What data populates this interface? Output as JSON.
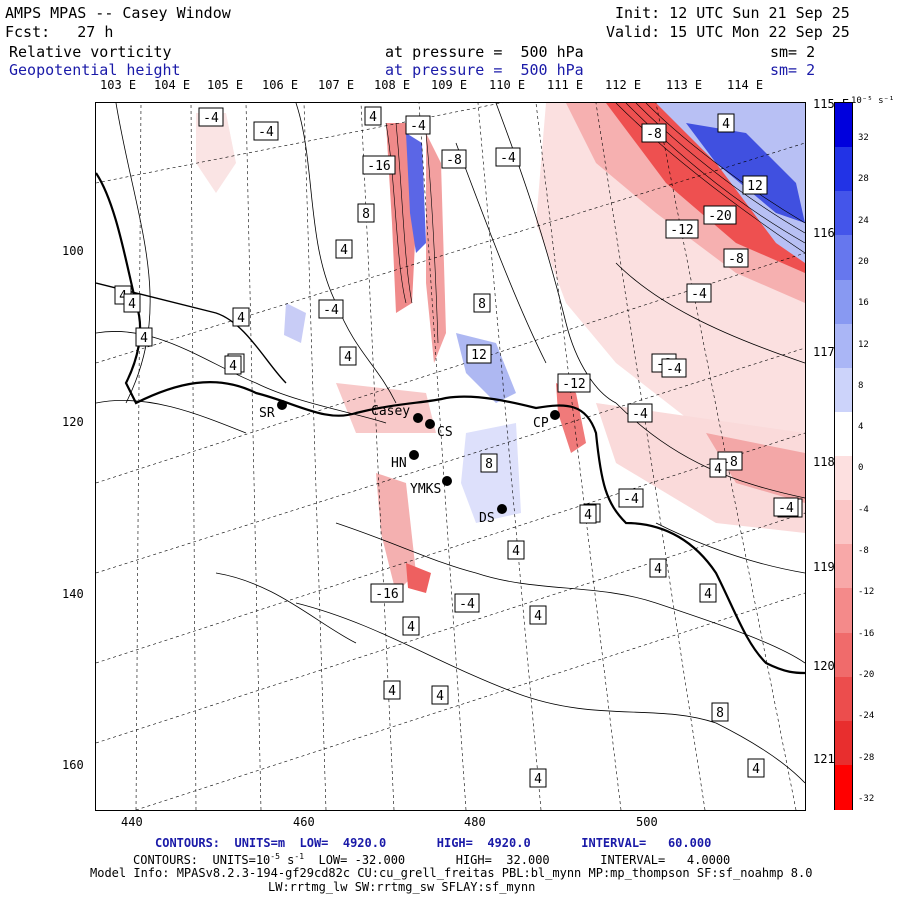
{
  "header": {
    "title": "AMPS MPAS -- Casey Window",
    "forecast": "Fcst:   27 h",
    "init": "Init: 12 UTC Sun 21 Sep 25",
    "valid": "Valid: 15 UTC Mon 22 Sep 25",
    "field1": {
      "name": "Relative vorticity",
      "level": "at pressure =  500 hPa",
      "smooth": "sm= 2"
    },
    "field2": {
      "name": "Geopotential height",
      "level": "at pressure =  500 hPa",
      "smooth": "sm= 2"
    }
  },
  "axes": {
    "top_lon": [
      "103 E",
      "104 E",
      "105 E",
      "106 E",
      "107 E",
      "108 E",
      "109 E",
      "110 E",
      "111 E",
      "112 E",
      "113 E",
      "114 E"
    ],
    "right_lat": [
      "115 E",
      "116 E",
      "117 E",
      "118 E",
      "119 E",
      "120 E",
      "121 E"
    ],
    "y_ticks": [
      "100",
      "120",
      "140",
      "160"
    ],
    "x_ticks": [
      "440",
      "460",
      "480",
      "500"
    ]
  },
  "colorbar": {
    "unit": "10⁻⁵ s⁻¹",
    "labels": [
      "32",
      "28",
      "24",
      "20",
      "16",
      "12",
      "8",
      "4",
      "0",
      "-4",
      "-8",
      "-12",
      "-16",
      "-20",
      "-24",
      "-28",
      "-32"
    ]
  },
  "stations": [
    "SR",
    "Casey",
    "CS",
    "HN",
    "YMKS",
    "CP",
    "DS"
  ],
  "contour_labels": [
    "-4",
    "-4",
    "4",
    "-4",
    "8",
    "-16",
    "-8",
    "-4",
    "4",
    "8",
    "4",
    "4",
    "4",
    "-4",
    "4",
    "4",
    "4",
    "4",
    "-8",
    "4",
    "12",
    "-12",
    "-4",
    "-8",
    "-4",
    "-8",
    "8",
    "-4",
    "4",
    "4",
    "4",
    "-4",
    "4",
    "4",
    "4",
    "4",
    "4",
    "4",
    "4",
    "-16",
    "-20",
    "-12",
    "-8",
    "-4",
    "-8",
    "-4",
    "12",
    "4",
    "4",
    "8"
  ],
  "footer": {
    "contours1": "CONTOURS:  UNITS=m  LOW=  4920.0       HIGH=  4920.0       INTERVAL=   60.000",
    "contours2_prefix": "CONTOURS:  UNITS=10",
    "contours2_suffix": "  LOW= -32.000       HIGH=  32.000       INTERVAL=   4.0000",
    "model_info": "Model Info: MPASv8.2.3-194-gf29cd82c CU:cu_grell_freitas PBL:bl_mynn MP:mp_thompson SF:sf_noahmp 8.0",
    "model_info2": "LW:rrtmg_lw SW:rrtmg_sw SFLAY:sf_mynn"
  },
  "colors": {
    "pos": "#2233dd",
    "neg": "#ee1111",
    "title_blue": "#1a1aa8"
  }
}
